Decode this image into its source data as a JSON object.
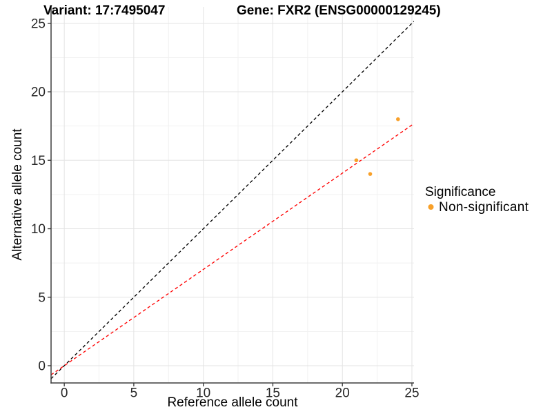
{
  "chart_data": {
    "type": "scatter",
    "titles": {
      "left": "Variant: 17:7495047",
      "right": "Gene: FXR2 (ENSG00000129245)"
    },
    "xlabel": "Reference allele count",
    "ylabel": "Alternative allele count",
    "x_ticks": [
      0,
      5,
      10,
      15,
      20,
      25
    ],
    "y_ticks": [
      0,
      5,
      10,
      15,
      20,
      25
    ],
    "x_minor": [
      2.5,
      7.5,
      12.5,
      17.5,
      22.5
    ],
    "y_minor": [
      2.5,
      7.5,
      12.5,
      17.5,
      22.5
    ],
    "xlim": [
      -0.95,
      25.15
    ],
    "ylim": [
      -1.26,
      26.2
    ],
    "grid": {
      "major": true,
      "minor": true
    },
    "series": [
      {
        "name": "Non-significant",
        "color": "#F8A029",
        "points": [
          {
            "x": 21,
            "y": 15
          },
          {
            "x": 22,
            "y": 14
          },
          {
            "x": 24,
            "y": 18
          }
        ]
      }
    ],
    "reference_lines": [
      {
        "name": "identity-line",
        "slope": 1,
        "intercept": 0,
        "color": "#000000",
        "style": "dashed"
      },
      {
        "name": "fit-line",
        "slope": 0.703,
        "intercept": 0,
        "color": "#FF0000",
        "style": "dashed"
      }
    ],
    "legend": {
      "title": "Significance",
      "position": "right",
      "items": [
        {
          "label": "Non-significant",
          "color": "#F8A029",
          "marker": "circle"
        }
      ]
    },
    "colors": {
      "grid_major": "#E3E3E3",
      "grid_minor": "#F1F1F1",
      "axis_line": "#3C3C3C",
      "tick_mark": "#333333"
    }
  }
}
